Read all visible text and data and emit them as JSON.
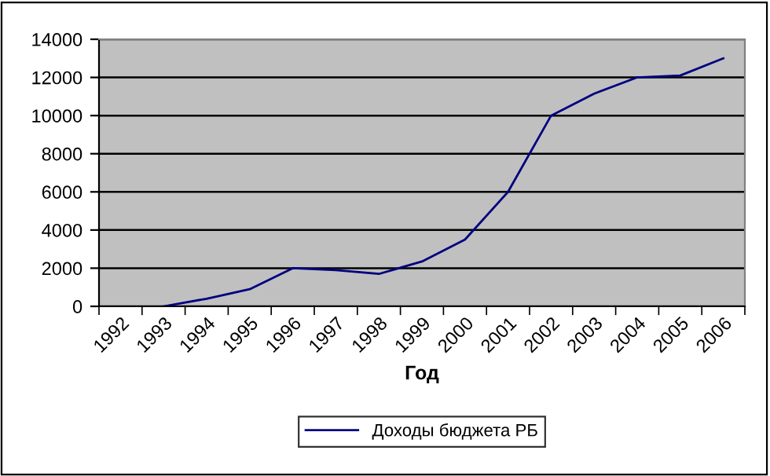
{
  "chart_data": {
    "type": "line",
    "xlabel": "Год",
    "categories": [
      "1992",
      "1993",
      "1994",
      "1995",
      "1996",
      "1997",
      "1998",
      "1999",
      "2000",
      "2001",
      "2002",
      "2003",
      "2004",
      "2005",
      "2006"
    ],
    "series": [
      {
        "name": "Доходы бюджета РБ",
        "color": "#000080",
        "values": [
          null,
          0,
          400,
          900,
          2000,
          1900,
          1700,
          2350,
          3500,
          6000,
          10000,
          11150,
          12000,
          12100,
          13000
        ]
      }
    ],
    "ylim": [
      0,
      14000
    ],
    "yticks": [
      0,
      2000,
      4000,
      6000,
      8000,
      10000,
      12000,
      14000
    ],
    "grid": "y",
    "legend": "bottom",
    "marker": "none",
    "line_style": "solid"
  }
}
